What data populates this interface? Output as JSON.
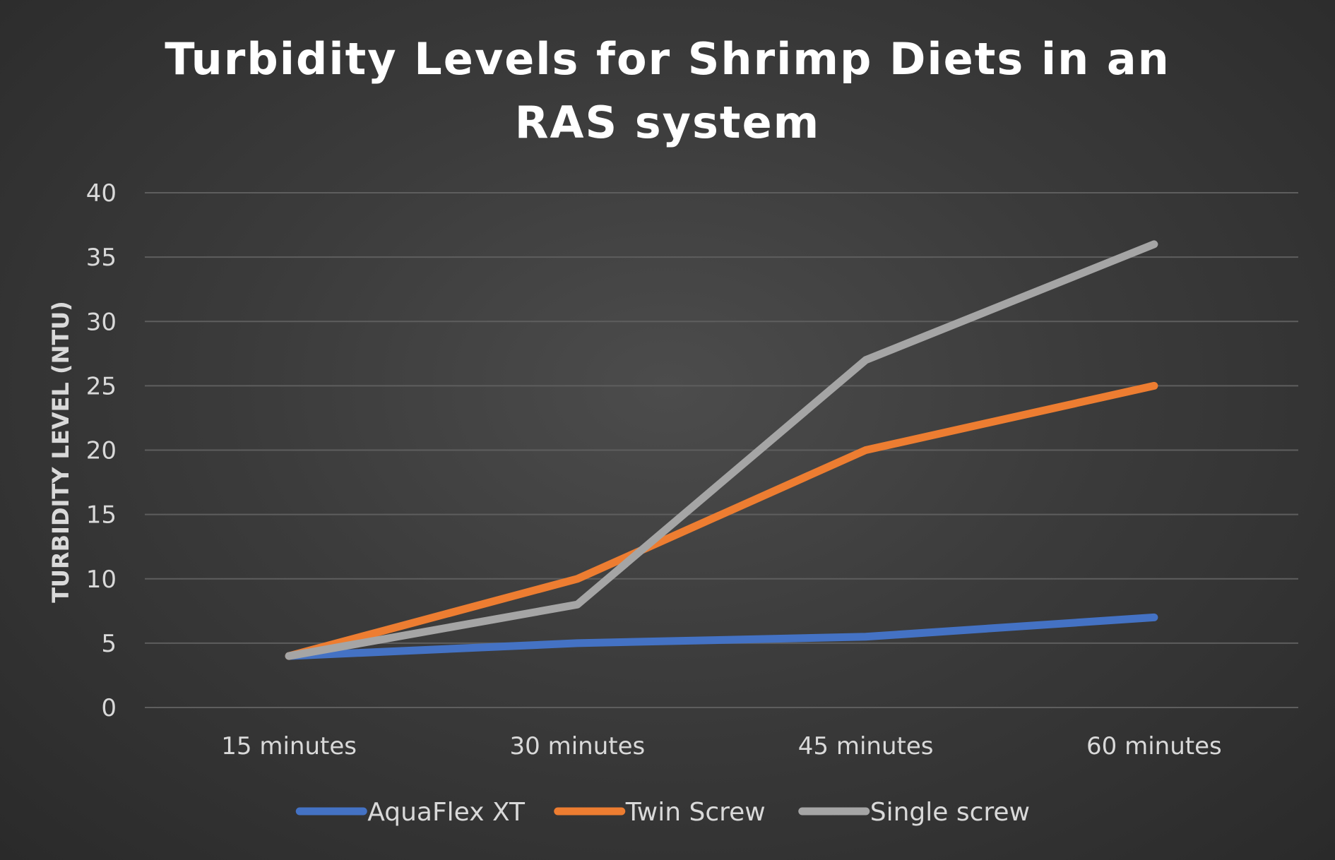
{
  "chart_data": {
    "type": "line",
    "title_lines": [
      "Turbidity Levels for Shrimp Diets in an",
      "RAS system"
    ],
    "xlabel": "",
    "ylabel": "TURBIDITY LEVEL (NTU)",
    "categories": [
      "15 minutes",
      "30 minutes",
      "45 minutes",
      "60 minutes"
    ],
    "ylim": [
      0,
      40
    ],
    "yticks": [
      0,
      5,
      10,
      15,
      20,
      25,
      30,
      35,
      40
    ],
    "grid": true,
    "legend_position": "bottom",
    "series": [
      {
        "name": "AquaFlex XT",
        "color": "#4472c4",
        "values": [
          4,
          5,
          5.5,
          7
        ]
      },
      {
        "name": "Twin Screw",
        "color": "#ed7d31",
        "values": [
          4,
          10,
          20,
          25
        ]
      },
      {
        "name": "Single screw",
        "color": "#a5a5a5",
        "values": [
          4,
          8,
          27,
          36
        ]
      }
    ]
  }
}
